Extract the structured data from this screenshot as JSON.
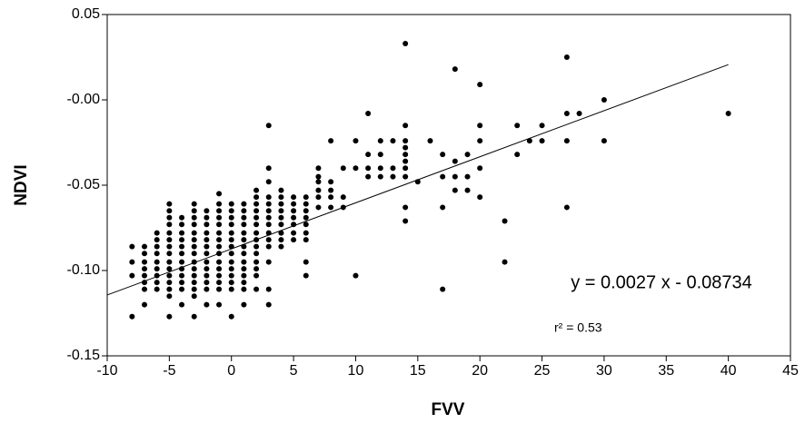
{
  "chart_data": {
    "type": "scatter",
    "x_label": "FVV",
    "y_label": "NDVI",
    "annotations": [
      "y = 0.0027 x - 0.08734",
      "r² = 0.53"
    ],
    "trendline": {
      "slope": 0.0027,
      "intercept": -0.08734,
      "x": [
        -10,
        40
      ]
    },
    "xlim": [
      -10,
      45
    ],
    "xticks": [
      -10,
      -5,
      0,
      5,
      10,
      15,
      20,
      25,
      30,
      35,
      40,
      45
    ],
    "ylim": [
      -0.15,
      0.05
    ],
    "yticks": [
      -0.15,
      {
        "value": -0.1,
        "label": "-0.10"
      },
      -0.05,
      {
        "value": 0,
        "label": "-0.00"
      },
      0.05
    ],
    "color": "#000000",
    "x": [
      -8,
      -8,
      -8,
      -8,
      -7,
      -7,
      -7,
      -7,
      -7,
      -7,
      -7,
      -7,
      -6,
      -6,
      -6,
      -6,
      -6,
      -6,
      -6,
      -6,
      -6,
      -5,
      -5,
      -5,
      -5,
      -5,
      -5,
      -5,
      -5,
      -5,
      -5,
      -5,
      -5,
      -5,
      -5,
      -5,
      -4,
      -4,
      -4,
      -4,
      -4,
      -4,
      -4,
      -4,
      -4,
      -4,
      -4,
      -4,
      -3,
      -3,
      -3,
      -3,
      -3,
      -3,
      -3,
      -3,
      -3,
      -3,
      -3,
      -3,
      -3,
      -3,
      -3,
      -2,
      -2,
      -2,
      -2,
      -2,
      -2,
      -2,
      -2,
      -2,
      -2,
      -2,
      -2,
      -2,
      -1,
      -1,
      -1,
      -1,
      -1,
      -1,
      -1,
      -1,
      -1,
      -1,
      -1,
      -1,
      -1,
      -1,
      -1,
      0,
      0,
      0,
      0,
      0,
      0,
      0,
      0,
      0,
      0,
      0,
      0,
      0,
      0,
      1,
      1,
      1,
      1,
      1,
      1,
      1,
      1,
      1,
      1,
      1,
      1,
      1,
      1,
      2,
      2,
      2,
      2,
      2,
      2,
      2,
      2,
      2,
      2,
      2,
      2,
      2,
      2,
      3,
      3,
      3,
      3,
      3,
      3,
      3,
      3,
      3,
      3,
      3,
      3,
      3,
      3,
      4,
      4,
      4,
      4,
      4,
      4,
      4,
      4,
      4,
      5,
      5,
      5,
      5,
      5,
      5,
      5,
      6,
      6,
      6,
      6,
      6,
      6,
      6,
      6,
      6,
      7,
      7,
      7,
      7,
      7,
      7,
      8,
      8,
      8,
      8,
      8,
      9,
      9,
      9,
      10,
      10,
      10,
      11,
      11,
      11,
      11,
      12,
      12,
      12,
      12,
      13,
      13,
      13,
      14,
      14,
      14,
      14,
      14,
      14,
      14,
      14,
      14,
      14,
      15,
      16,
      17,
      17,
      17,
      17,
      18,
      18,
      18,
      18,
      19,
      19,
      19,
      20,
      20,
      20,
      20,
      20,
      22,
      22,
      23,
      23,
      24,
      25,
      25,
      27,
      27,
      27,
      27,
      28,
      30,
      30,
      40
    ],
    "values": [
      -0.086,
      -0.095,
      -0.103,
      -0.127,
      -0.086,
      -0.09,
      -0.095,
      -0.099,
      -0.103,
      -0.107,
      -0.111,
      -0.12,
      -0.078,
      -0.082,
      -0.086,
      -0.09,
      -0.095,
      -0.099,
      -0.103,
      -0.107,
      -0.111,
      -0.061,
      -0.065,
      -0.069,
      -0.073,
      -0.078,
      -0.082,
      -0.086,
      -0.09,
      -0.095,
      -0.099,
      -0.103,
      -0.107,
      -0.111,
      -0.115,
      -0.127,
      -0.069,
      -0.073,
      -0.078,
      -0.082,
      -0.086,
      -0.09,
      -0.095,
      -0.099,
      -0.103,
      -0.107,
      -0.111,
      -0.12,
      -0.061,
      -0.065,
      -0.069,
      -0.073,
      -0.078,
      -0.082,
      -0.086,
      -0.09,
      -0.095,
      -0.099,
      -0.103,
      -0.107,
      -0.111,
      -0.115,
      -0.127,
      -0.065,
      -0.069,
      -0.073,
      -0.078,
      -0.082,
      -0.086,
      -0.09,
      -0.095,
      -0.099,
      -0.103,
      -0.107,
      -0.111,
      -0.12,
      -0.055,
      -0.061,
      -0.065,
      -0.069,
      -0.073,
      -0.078,
      -0.082,
      -0.086,
      -0.09,
      -0.095,
      -0.099,
      -0.103,
      -0.107,
      -0.111,
      -0.12,
      -0.061,
      -0.065,
      -0.069,
      -0.073,
      -0.078,
      -0.082,
      -0.086,
      -0.09,
      -0.095,
      -0.099,
      -0.103,
      -0.107,
      -0.111,
      -0.127,
      -0.061,
      -0.065,
      -0.069,
      -0.073,
      -0.078,
      -0.082,
      -0.086,
      -0.09,
      -0.095,
      -0.099,
      -0.103,
      -0.107,
      -0.111,
      -0.12,
      -0.053,
      -0.057,
      -0.061,
      -0.065,
      -0.069,
      -0.073,
      -0.078,
      -0.082,
      -0.086,
      -0.09,
      -0.095,
      -0.099,
      -0.103,
      -0.111,
      -0.015,
      -0.04,
      -0.048,
      -0.057,
      -0.061,
      -0.065,
      -0.069,
      -0.073,
      -0.078,
      -0.082,
      -0.086,
      -0.095,
      -0.111,
      -0.12,
      -0.053,
      -0.057,
      -0.061,
      -0.065,
      -0.069,
      -0.073,
      -0.078,
      -0.082,
      -0.086,
      -0.057,
      -0.061,
      -0.065,
      -0.069,
      -0.073,
      -0.078,
      -0.082,
      -0.057,
      -0.061,
      -0.065,
      -0.069,
      -0.073,
      -0.078,
      -0.082,
      -0.095,
      -0.103,
      -0.04,
      -0.045,
      -0.048,
      -0.053,
      -0.057,
      -0.063,
      -0.024,
      -0.048,
      -0.053,
      -0.057,
      -0.063,
      -0.04,
      -0.057,
      -0.063,
      -0.024,
      -0.04,
      -0.103,
      -0.008,
      -0.032,
      -0.04,
      -0.045,
      -0.024,
      -0.032,
      -0.04,
      -0.045,
      -0.024,
      -0.04,
      -0.045,
      0.033,
      -0.015,
      -0.024,
      -0.028,
      -0.032,
      -0.036,
      -0.04,
      -0.045,
      -0.063,
      -0.071,
      -0.048,
      -0.024,
      -0.032,
      -0.045,
      -0.063,
      -0.111,
      0.018,
      -0.036,
      -0.045,
      -0.053,
      -0.032,
      -0.045,
      -0.053,
      0.009,
      -0.015,
      -0.024,
      -0.04,
      -0.057,
      -0.071,
      -0.095,
      -0.015,
      -0.032,
      -0.024,
      -0.015,
      -0.024,
      0.025,
      -0.008,
      -0.024,
      -0.063,
      -0.008,
      0,
      -0.024,
      -0.008
    ]
  }
}
